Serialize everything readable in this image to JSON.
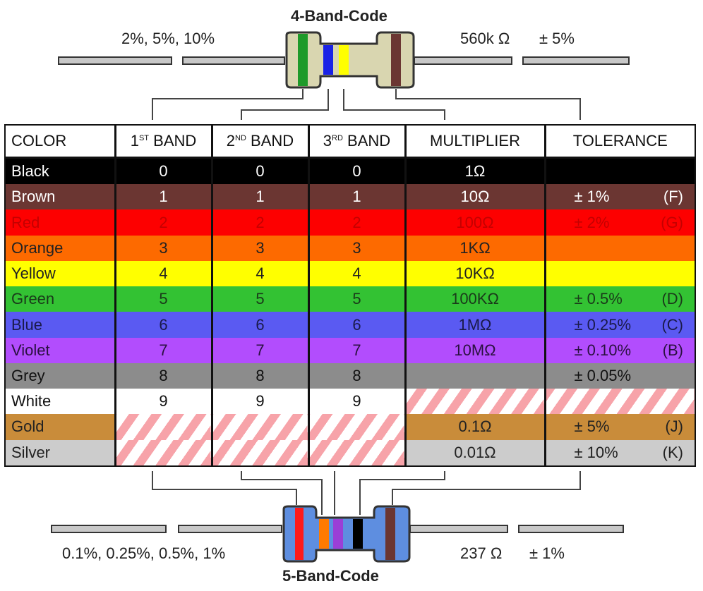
{
  "top": {
    "title": "4-Band-Code",
    "left_caption": "2%, 5%, 10%",
    "right_value": "560k Ω",
    "right_tol": "± 5%"
  },
  "bottom": {
    "title": "5-Band-Code",
    "left_caption": "0.1%, 0.25%, 0.5%, 1%",
    "right_value": "237 Ω",
    "right_tol": "± 1%"
  },
  "headers": {
    "color": "COLOR",
    "band1_pre": "1",
    "band1_sup": "ST",
    "band1_post": " BAND",
    "band2_pre": "2",
    "band2_sup": "ND",
    "band2_post": " BAND",
    "band3_pre": "3",
    "band3_sup": "RD",
    "band3_post": " BAND",
    "multiplier": "MULTIPLIER",
    "tolerance": "TOLERANCE"
  },
  "rows": [
    {
      "name": "Black",
      "d1": "0",
      "d2": "0",
      "d3": "0",
      "mult": "1Ω",
      "tol": "",
      "code": "",
      "bg": "#000000",
      "fg": "#ffffff"
    },
    {
      "name": "Brown",
      "d1": "1",
      "d2": "1",
      "d3": "1",
      "mult": "10Ω",
      "tol": "± 1%",
      "code": "(F)",
      "bg": "#6b3632",
      "fg": "#ffffff"
    },
    {
      "name": "Red",
      "d1": "2",
      "d2": "2",
      "d3": "2",
      "mult": "100Ω",
      "tol": "± 2%",
      "code": "(G)",
      "bg": "#fd0000",
      "fg": "#c40000"
    },
    {
      "name": "Orange",
      "d1": "3",
      "d2": "3",
      "d3": "3",
      "mult": "1KΩ",
      "tol": "",
      "code": "",
      "bg": "#fd6a00",
      "fg": "#222222"
    },
    {
      "name": "Yellow",
      "d1": "4",
      "d2": "4",
      "d3": "4",
      "mult": "10KΩ",
      "tol": "",
      "code": "",
      "bg": "#ffff00",
      "fg": "#222222"
    },
    {
      "name": "Green",
      "d1": "5",
      "d2": "5",
      "d3": "5",
      "mult": "100KΩ",
      "tol": "± 0.5%",
      "code": "(D)",
      "bg": "#33c233",
      "fg": "#1a3a1a"
    },
    {
      "name": "Blue",
      "d1": "6",
      "d2": "6",
      "d3": "6",
      "mult": "1MΩ",
      "tol": "± 0.25%",
      "code": "(C)",
      "bg": "#5a5af2",
      "fg": "#1a1a4a"
    },
    {
      "name": "Violet",
      "d1": "7",
      "d2": "7",
      "d3": "7",
      "mult": "10MΩ",
      "tol": "± 0.10%",
      "code": "(B)",
      "bg": "#b24dfd",
      "fg": "#2a1040"
    },
    {
      "name": "Grey",
      "d1": "8",
      "d2": "8",
      "d3": "8",
      "mult": "",
      "tol": "± 0.05%",
      "code": "",
      "bg": "#8c8c8c",
      "fg": "#111111"
    },
    {
      "name": "White",
      "d1": "9",
      "d2": "9",
      "d3": "9",
      "mult": "",
      "tol": "",
      "code": "",
      "bg": "#ffffff",
      "fg": "#111111"
    },
    {
      "name": "Gold",
      "d1": "",
      "d2": "",
      "d3": "",
      "mult": "0.1Ω",
      "tol": "± 5%",
      "code": "(J)",
      "bg": "#c98c3a",
      "fg": "#222222"
    },
    {
      "name": "Silver",
      "d1": "",
      "d2": "",
      "d3": "",
      "mult": "0.01Ω",
      "tol": "± 10%",
      "code": "(K)",
      "bg": "#cccccc",
      "fg": "#222222"
    }
  ],
  "colors": {
    "hatch": "#f7a3a9",
    "body_4band": "#d9d6b0",
    "body_5band": "#5e8ee0"
  }
}
